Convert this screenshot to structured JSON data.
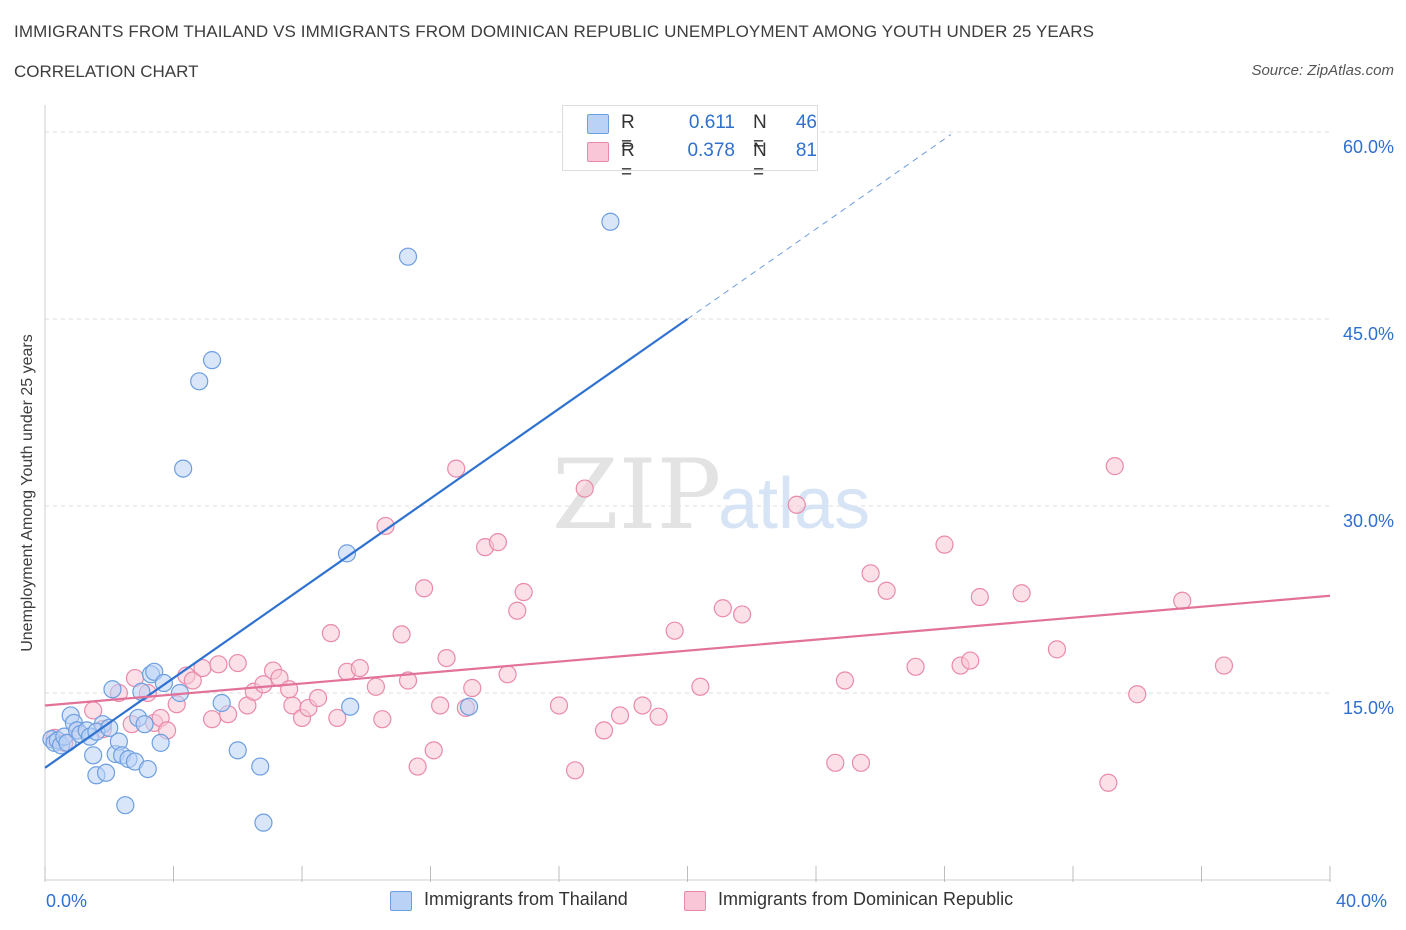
{
  "header": {
    "title": "IMMIGRANTS FROM THAILAND VS IMMIGRANTS FROM DOMINICAN REPUBLIC UNEMPLOYMENT AMONG YOUTH UNDER 25 YEARS",
    "subtitle": "CORRELATION CHART",
    "source": "Source: ZipAtlas.com"
  },
  "watermark": "ZIPatlas",
  "legend_top": {
    "rows": [
      {
        "r_label": "R =",
        "r_value": "0.611",
        "n_label": "N =",
        "n_value": "46"
      },
      {
        "r_label": "R =",
        "r_value": "0.378",
        "n_label": "N =",
        "n_value": "81"
      }
    ]
  },
  "legend_bottom": {
    "items": [
      {
        "label": "Immigrants from Thailand"
      },
      {
        "label": "Immigrants from Dominican Republic"
      }
    ]
  },
  "colors": {
    "blue_fill": "#b9d2f6",
    "blue_stroke": "#6d9fe0",
    "blue_line": "#2f72d0",
    "pink_fill": "#f8c6d6",
    "pink_stroke": "#ea8aab",
    "pink_line": "#e2729a",
    "grid": "#dcdcdc",
    "tick_text": "#2f6fce"
  },
  "chart_data": {
    "type": "scatter",
    "title": "IMMIGRANTS FROM THAILAND VS IMMIGRANTS FROM DOMINICAN REPUBLIC UNEMPLOYMENT AMONG YOUTH UNDER 25 YEARS",
    "xlabel": "",
    "ylabel": "Unemployment Among Youth under 25 years",
    "xlim": [
      0,
      40
    ],
    "ylim": [
      0,
      60
    ],
    "x_tick_labels": [
      "0.0%",
      "40.0%"
    ],
    "y_ticks": [
      15,
      30,
      45,
      60
    ],
    "y_tick_labels": [
      "15.0%",
      "30.0%",
      "45.0%",
      "60.0%"
    ],
    "grid": true,
    "series": [
      {
        "name": "Immigrants from Thailand",
        "R": 0.611,
        "N": 46,
        "trend": {
          "x0": 0,
          "y0": 9.0,
          "x1": 20,
          "y1": 45.0,
          "dashed_to_x": 28.2,
          "dashed_to_y": 59.8
        },
        "points": [
          [
            0.2,
            11.3
          ],
          [
            0.3,
            11.0
          ],
          [
            0.4,
            11.2
          ],
          [
            0.5,
            10.8
          ],
          [
            0.6,
            11.5
          ],
          [
            0.7,
            11.0
          ],
          [
            0.8,
            13.2
          ],
          [
            0.9,
            12.6
          ],
          [
            1.0,
            12.0
          ],
          [
            1.1,
            11.7
          ],
          [
            1.3,
            12.0
          ],
          [
            1.4,
            11.5
          ],
          [
            1.5,
            10.0
          ],
          [
            1.6,
            8.4
          ],
          [
            1.8,
            12.5
          ],
          [
            1.9,
            8.6
          ],
          [
            2.1,
            15.3
          ],
          [
            2.2,
            10.1
          ],
          [
            2.3,
            11.1
          ],
          [
            2.4,
            10.0
          ],
          [
            2.5,
            6.0
          ],
          [
            2.6,
            9.7
          ],
          [
            2.8,
            9.5
          ],
          [
            2.9,
            13.0
          ],
          [
            3.0,
            15.1
          ],
          [
            3.1,
            12.5
          ],
          [
            3.2,
            8.9
          ],
          [
            3.3,
            16.5
          ],
          [
            3.4,
            16.7
          ],
          [
            3.6,
            11.0
          ],
          [
            3.7,
            15.8
          ],
          [
            4.2,
            15.0
          ],
          [
            4.3,
            33.0
          ],
          [
            4.8,
            40.0
          ],
          [
            5.2,
            41.7
          ],
          [
            5.5,
            14.2
          ],
          [
            6.0,
            10.4
          ],
          [
            6.7,
            9.1
          ],
          [
            6.8,
            4.6
          ],
          [
            9.4,
            26.2
          ],
          [
            9.5,
            13.9
          ],
          [
            11.3,
            50.0
          ],
          [
            13.2,
            13.9
          ],
          [
            17.6,
            52.8
          ],
          [
            1.6,
            11.9
          ],
          [
            2.0,
            12.2
          ]
        ]
      },
      {
        "name": "Immigrants from Dominican Republic",
        "R": 0.378,
        "N": 81,
        "trend": {
          "x0": 0,
          "y0": 14.0,
          "x1": 40,
          "y1": 22.8
        },
        "points": [
          [
            0.3,
            11.4
          ],
          [
            0.6,
            11.0
          ],
          [
            1.0,
            12.0
          ],
          [
            1.5,
            13.6
          ],
          [
            1.8,
            12.1
          ],
          [
            2.3,
            15.0
          ],
          [
            2.7,
            12.5
          ],
          [
            2.8,
            16.2
          ],
          [
            3.2,
            15.0
          ],
          [
            3.4,
            12.6
          ],
          [
            3.6,
            13.0
          ],
          [
            3.8,
            12.0
          ],
          [
            4.1,
            14.1
          ],
          [
            4.4,
            16.4
          ],
          [
            4.6,
            16.0
          ],
          [
            4.9,
            17.0
          ],
          [
            5.2,
            12.9
          ],
          [
            5.4,
            17.3
          ],
          [
            5.7,
            13.3
          ],
          [
            6.0,
            17.4
          ],
          [
            6.3,
            14.0
          ],
          [
            6.5,
            15.1
          ],
          [
            6.8,
            15.7
          ],
          [
            7.1,
            16.8
          ],
          [
            7.3,
            16.2
          ],
          [
            7.7,
            14.0
          ],
          [
            8.0,
            13.0
          ],
          [
            8.2,
            13.8
          ],
          [
            8.5,
            14.6
          ],
          [
            8.9,
            19.8
          ],
          [
            9.1,
            13.0
          ],
          [
            9.4,
            16.7
          ],
          [
            9.8,
            17.0
          ],
          [
            10.3,
            15.5
          ],
          [
            10.5,
            12.9
          ],
          [
            10.6,
            28.4
          ],
          [
            11.1,
            19.7
          ],
          [
            11.3,
            16.0
          ],
          [
            11.6,
            9.1
          ],
          [
            11.8,
            23.4
          ],
          [
            12.1,
            10.4
          ],
          [
            12.3,
            14.0
          ],
          [
            12.5,
            17.8
          ],
          [
            12.8,
            33.0
          ],
          [
            13.1,
            13.8
          ],
          [
            13.3,
            15.4
          ],
          [
            13.7,
            26.7
          ],
          [
            14.1,
            27.1
          ],
          [
            14.4,
            16.5
          ],
          [
            14.7,
            21.6
          ],
          [
            14.9,
            23.1
          ],
          [
            16.0,
            14.0
          ],
          [
            16.5,
            8.8
          ],
          [
            16.8,
            31.4
          ],
          [
            17.9,
            13.2
          ],
          [
            18.6,
            14.0
          ],
          [
            19.1,
            13.1
          ],
          [
            19.6,
            20.0
          ],
          [
            20.4,
            15.5
          ],
          [
            21.1,
            21.8
          ],
          [
            21.7,
            21.3
          ],
          [
            23.4,
            30.1
          ],
          [
            24.6,
            9.4
          ],
          [
            25.4,
            9.4
          ],
          [
            25.7,
            24.6
          ],
          [
            26.2,
            23.2
          ],
          [
            27.1,
            17.1
          ],
          [
            28.0,
            26.9
          ],
          [
            28.5,
            17.2
          ],
          [
            28.8,
            17.6
          ],
          [
            29.1,
            22.7
          ],
          [
            30.4,
            23.0
          ],
          [
            33.3,
            33.2
          ],
          [
            33.1,
            7.8
          ],
          [
            34.0,
            14.9
          ],
          [
            35.4,
            22.4
          ],
          [
            36.7,
            17.2
          ],
          [
            31.5,
            18.5
          ],
          [
            17.4,
            12.0
          ],
          [
            7.6,
            15.3
          ],
          [
            24.9,
            16.0
          ]
        ]
      }
    ]
  }
}
